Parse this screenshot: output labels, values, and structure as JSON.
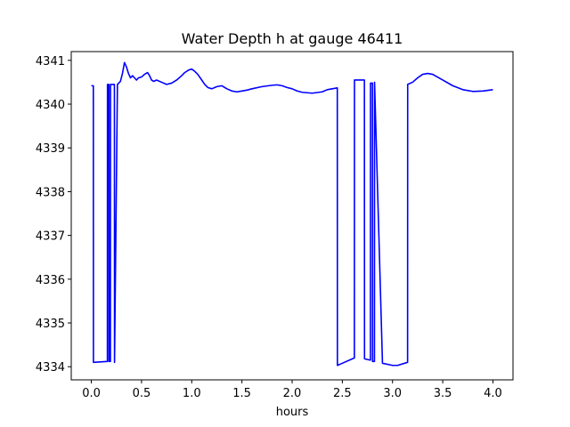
{
  "chart_data": {
    "type": "line",
    "title": "Water Depth h at gauge 46411",
    "xlabel": "hours",
    "ylabel": "",
    "xlim": [
      -0.2,
      4.2
    ],
    "ylim": [
      4333.7,
      4341.2
    ],
    "xticks": [
      0.0,
      0.5,
      1.0,
      1.5,
      2.0,
      2.5,
      3.0,
      3.5,
      4.0
    ],
    "xtick_labels": [
      "0.0",
      "0.5",
      "1.0",
      "1.5",
      "2.0",
      "2.5",
      "3.0",
      "3.5",
      "4.0"
    ],
    "yticks": [
      4334,
      4335,
      4336,
      4337,
      4338,
      4339,
      4340,
      4341
    ],
    "ytick_labels": [
      "4334",
      "4335",
      "4336",
      "4337",
      "4338",
      "4339",
      "4340",
      "4341"
    ],
    "grid": false,
    "series": [
      {
        "color": "#0000ff",
        "x": [
          0.0,
          0.02,
          0.021,
          0.16,
          0.161,
          0.175,
          0.176,
          0.19,
          0.191,
          0.23,
          0.231,
          0.26,
          0.29,
          0.31,
          0.33,
          0.35,
          0.37,
          0.39,
          0.41,
          0.43,
          0.45,
          0.47,
          0.5,
          0.53,
          0.56,
          0.58,
          0.6,
          0.62,
          0.65,
          0.7,
          0.75,
          0.8,
          0.85,
          0.9,
          0.93,
          0.97,
          1.0,
          1.03,
          1.06,
          1.1,
          1.13,
          1.16,
          1.2,
          1.25,
          1.3,
          1.35,
          1.4,
          1.45,
          1.5,
          1.55,
          1.6,
          1.7,
          1.8,
          1.85,
          1.9,
          1.95,
          2.0,
          2.05,
          2.1,
          2.2,
          2.3,
          2.35,
          2.4,
          2.45,
          2.451,
          2.62,
          2.621,
          2.72,
          2.721,
          2.78,
          2.781,
          2.8,
          2.801,
          2.82,
          2.821,
          2.9,
          3.0,
          3.05,
          3.15,
          3.151,
          3.2,
          3.25,
          3.3,
          3.35,
          3.4,
          3.5,
          3.6,
          3.7,
          3.8,
          3.9,
          4.0
        ],
        "y": [
          4340.42,
          4340.42,
          4334.1,
          4334.12,
          4340.45,
          4340.45,
          4334.12,
          4334.12,
          4340.45,
          4340.45,
          4334.1,
          4340.45,
          4340.52,
          4340.7,
          4340.95,
          4340.85,
          4340.7,
          4340.6,
          4340.65,
          4340.6,
          4340.55,
          4340.6,
          4340.62,
          4340.68,
          4340.72,
          4340.65,
          4340.55,
          4340.52,
          4340.55,
          4340.5,
          4340.45,
          4340.48,
          4340.55,
          4340.65,
          4340.72,
          4340.78,
          4340.8,
          4340.75,
          4340.68,
          4340.55,
          4340.45,
          4340.38,
          4340.35,
          4340.4,
          4340.42,
          4340.35,
          4340.3,
          4340.28,
          4340.3,
          4340.32,
          4340.35,
          4340.4,
          4340.43,
          4340.44,
          4340.42,
          4340.38,
          4340.35,
          4340.3,
          4340.27,
          4340.25,
          4340.28,
          4340.33,
          4340.35,
          4340.37,
          4334.03,
          4334.2,
          4340.55,
          4340.55,
          4334.18,
          4334.15,
          4340.48,
          4340.48,
          4334.12,
          4334.12,
          4340.5,
          4334.08,
          4334.03,
          4334.03,
          4334.1,
          4340.45,
          4340.5,
          4340.6,
          4340.68,
          4340.7,
          4340.68,
          4340.55,
          4340.42,
          4340.33,
          4340.29,
          4340.3,
          4340.33
        ]
      }
    ]
  }
}
